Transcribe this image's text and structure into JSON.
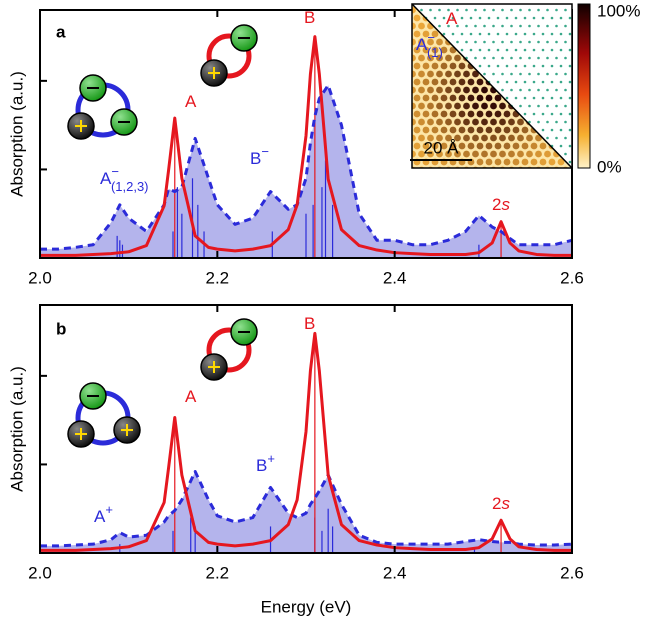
{
  "chart_data": [
    {
      "type": "line",
      "panel_label": "a",
      "ylabel": "Absorption (a.u.)",
      "xlim": [
        2.0,
        2.6
      ],
      "xticks": [
        {
          "value": 2.0,
          "label": "2.0"
        },
        2.2,
        2.4,
        2.6
      ],
      "ylim": [
        0,
        2.8
      ],
      "yticks": [
        0,
        1,
        2
      ],
      "x": [
        2.0,
        2.02,
        2.04,
        2.06,
        2.08,
        2.09,
        2.1,
        2.12,
        2.14,
        2.145,
        2.152,
        2.16,
        2.175,
        2.19,
        2.2,
        2.22,
        2.24,
        2.26,
        2.28,
        2.29,
        2.3,
        2.305,
        2.31,
        2.315,
        2.325,
        2.34,
        2.36,
        2.38,
        2.4,
        2.42,
        2.44,
        2.46,
        2.48,
        2.495,
        2.51,
        2.52,
        2.53,
        2.54,
        2.56,
        2.58,
        2.6
      ],
      "series": [
        {
          "color": "#2b2bd9",
          "fill": "#b4b4ec",
          "line_style": "dashed",
          "values": [
            0.1,
            0.1,
            0.12,
            0.15,
            0.4,
            0.6,
            0.45,
            0.3,
            0.6,
            0.78,
            0.75,
            0.8,
            1.35,
            0.9,
            0.6,
            0.38,
            0.45,
            0.75,
            0.55,
            0.6,
            0.9,
            1.3,
            1.6,
            1.8,
            1.95,
            1.5,
            0.5,
            0.2,
            0.2,
            0.15,
            0.15,
            0.2,
            0.3,
            0.48,
            0.35,
            0.3,
            0.22,
            0.15,
            0.15,
            0.15,
            0.2
          ]
        },
        {
          "color": "#e5171f",
          "line_style": "solid",
          "values": [
            0.03,
            0.03,
            0.03,
            0.04,
            0.05,
            0.06,
            0.07,
            0.14,
            0.59,
            0.99,
            1.58,
            0.9,
            0.25,
            0.12,
            0.1,
            0.08,
            0.1,
            0.14,
            0.32,
            0.6,
            1.38,
            2.08,
            2.5,
            2.08,
            0.89,
            0.32,
            0.14,
            0.09,
            0.06,
            0.05,
            0.04,
            0.04,
            0.04,
            0.06,
            0.17,
            0.41,
            0.17,
            0.08,
            0.04,
            0.03,
            0.03
          ]
        }
      ],
      "sticks": [
        {
          "color": "#2b2bd9",
          "x": [
            2.087,
            2.09,
            2.093,
            2.15,
            2.155,
            2.16,
            2.172,
            2.178,
            2.185,
            2.262,
            2.3,
            2.308,
            2.318,
            2.322,
            2.33,
            2.4,
            2.495
          ],
          "values": [
            0.25,
            0.2,
            0.15,
            0.3,
            0.8,
            0.5,
            0.9,
            0.6,
            0.3,
            0.3,
            0.5,
            0.6,
            0.8,
            1.1,
            0.6,
            0.05,
            0.15
          ]
        },
        {
          "color": "#e5171f",
          "x": [
            2.152,
            2.31,
            2.52
          ],
          "values": [
            1.58,
            2.5,
            0.41
          ]
        }
      ],
      "annotations": [
        {
          "color": "#e5171f",
          "base": "A"
        },
        {
          "color": "#e5171f",
          "base": "B"
        },
        {
          "color": "#2b2bd9",
          "base": "B",
          "sup": "−"
        },
        {
          "color": "#2b2bd9",
          "base": "A",
          "sup": "−",
          "sub": "(1,2,3)"
        },
        {
          "color": "#e5171f",
          "base": "2",
          "italic": "s"
        }
      ],
      "inset": {
        "colorbar_max": "100%",
        "colorbar_min": "0%",
        "scale_bar": "20 Å",
        "labels": [
          {
            "color": "#e5171f",
            "base": "A"
          },
          {
            "color": "#2b2bd9",
            "base": "A",
            "sup": "−",
            "sub": "(1)"
          }
        ]
      }
    },
    {
      "type": "line",
      "panel_label": "b",
      "ylabel": "Absorption (a.u.)",
      "xlabel": "Energy (eV)",
      "xlim": [
        2.0,
        2.6
      ],
      "xticks": [
        {
          "value": 2.0,
          "label": "2.0"
        },
        2.2,
        2.4,
        2.6
      ],
      "ylim": [
        0,
        2.8
      ],
      "yticks": [
        0,
        1,
        2
      ],
      "x": [
        2.0,
        2.02,
        2.04,
        2.06,
        2.08,
        2.09,
        2.1,
        2.12,
        2.14,
        2.145,
        2.152,
        2.16,
        2.175,
        2.19,
        2.2,
        2.22,
        2.24,
        2.26,
        2.28,
        2.29,
        2.3,
        2.305,
        2.31,
        2.315,
        2.325,
        2.34,
        2.36,
        2.38,
        2.4,
        2.42,
        2.44,
        2.46,
        2.48,
        2.495,
        2.51,
        2.52,
        2.53,
        2.54,
        2.56,
        2.58,
        2.6
      ],
      "series": [
        {
          "color": "#2b2bd9",
          "fill": "#b4b4ec",
          "line_style": "dashed",
          "values": [
            0.08,
            0.08,
            0.09,
            0.1,
            0.15,
            0.23,
            0.18,
            0.2,
            0.35,
            0.42,
            0.48,
            0.6,
            0.92,
            0.6,
            0.42,
            0.35,
            0.4,
            0.74,
            0.45,
            0.4,
            0.45,
            0.55,
            0.62,
            0.7,
            0.88,
            0.55,
            0.2,
            0.12,
            0.1,
            0.1,
            0.1,
            0.1,
            0.13,
            0.15,
            0.13,
            0.12,
            0.12,
            0.1,
            0.09,
            0.09,
            0.1
          ]
        },
        {
          "color": "#e5171f",
          "line_style": "solid",
          "values": [
            0.03,
            0.03,
            0.03,
            0.04,
            0.05,
            0.06,
            0.07,
            0.14,
            0.57,
            0.96,
            1.53,
            0.88,
            0.25,
            0.12,
            0.1,
            0.08,
            0.1,
            0.14,
            0.32,
            0.6,
            1.37,
            2.06,
            2.48,
            2.06,
            0.88,
            0.32,
            0.14,
            0.09,
            0.06,
            0.05,
            0.04,
            0.04,
            0.04,
            0.06,
            0.16,
            0.37,
            0.16,
            0.07,
            0.04,
            0.03,
            0.03
          ]
        }
      ],
      "sticks": [
        {
          "color": "#2b2bd9",
          "x": [
            2.09,
            2.15,
            2.17,
            2.175,
            2.26,
            2.31,
            2.318,
            2.325,
            2.33,
            2.49
          ],
          "values": [
            0.1,
            0.25,
            0.4,
            0.3,
            0.3,
            0.4,
            0.25,
            0.5,
            0.3,
            0.05
          ]
        },
        {
          "color": "#e5171f",
          "x": [
            2.152,
            2.31,
            2.52
          ],
          "values": [
            1.53,
            2.48,
            0.37
          ]
        }
      ],
      "annotations": [
        {
          "color": "#e5171f",
          "base": "A"
        },
        {
          "color": "#e5171f",
          "base": "B"
        },
        {
          "color": "#2b2bd9",
          "base": "B",
          "sup": "+"
        },
        {
          "color": "#2b2bd9",
          "base": "A",
          "sup": "+"
        },
        {
          "color": "#e5171f",
          "base": "2",
          "italic": "s"
        }
      ]
    }
  ]
}
